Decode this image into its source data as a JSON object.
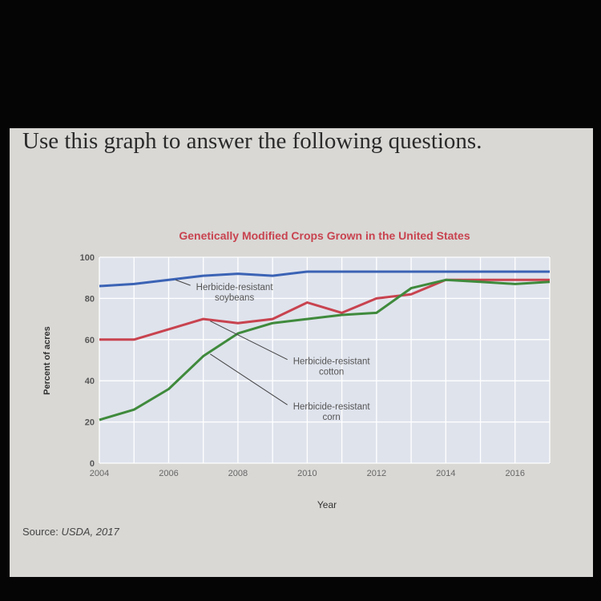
{
  "question": "Use this graph to answer the following questions.",
  "source": {
    "label": "Source:",
    "value": "USDA, 2017"
  },
  "colors": {
    "soybeans": "#3b63b5",
    "cotton": "#c8434f",
    "corn": "#3f8a3c",
    "title": "#c8434f"
  },
  "chart_data": {
    "type": "line",
    "title": "Genetically Modified Crops Grown in the United States",
    "xlabel": "Year",
    "ylabel": "Percent of acres",
    "xlim": [
      2004,
      2017
    ],
    "ylim": [
      0,
      100
    ],
    "xticks": [
      2004,
      2006,
      2008,
      2010,
      2012,
      2014,
      2016
    ],
    "yticks": [
      0,
      20,
      40,
      60,
      80,
      100
    ],
    "grid": true,
    "series": [
      {
        "name": "Herbicide-resistant soybeans",
        "color_key": "soybeans",
        "x": [
          2004,
          2005,
          2006,
          2007,
          2008,
          2009,
          2010,
          2011,
          2012,
          2013,
          2014,
          2015,
          2016,
          2017
        ],
        "y": [
          86,
          87,
          89,
          91,
          92,
          91,
          93,
          93,
          93,
          93,
          93,
          93,
          93,
          93
        ]
      },
      {
        "name": "Herbicide-resistant cotton",
        "color_key": "cotton",
        "x": [
          2004,
          2005,
          2006,
          2007,
          2008,
          2009,
          2010,
          2011,
          2012,
          2013,
          2014,
          2015,
          2016,
          2017
        ],
        "y": [
          60,
          60,
          65,
          70,
          68,
          70,
          78,
          73,
          80,
          82,
          89,
          89,
          89,
          89
        ]
      },
      {
        "name": "Herbicide-resistant corn",
        "color_key": "corn",
        "x": [
          2004,
          2005,
          2006,
          2007,
          2008,
          2009,
          2010,
          2011,
          2012,
          2013,
          2014,
          2015,
          2016,
          2017
        ],
        "y": [
          21,
          26,
          36,
          52,
          63,
          68,
          70,
          72,
          73,
          85,
          89,
          88,
          87,
          88
        ]
      }
    ],
    "annotations": [
      {
        "lines": [
          "Herbicide-resistant",
          "soybeans"
        ],
        "series": "soybeans",
        "at": [
          2007.9,
          84
        ],
        "point": [
          2006.2,
          89
        ]
      },
      {
        "lines": [
          "Herbicide-resistant",
          "cotton"
        ],
        "series": "cotton",
        "at": [
          2010.7,
          48
        ],
        "point": [
          2007.2,
          69
        ]
      },
      {
        "lines": [
          "Herbicide-resistant",
          "corn"
        ],
        "series": "corn",
        "at": [
          2010.7,
          26
        ],
        "point": [
          2007.2,
          53
        ]
      }
    ]
  }
}
